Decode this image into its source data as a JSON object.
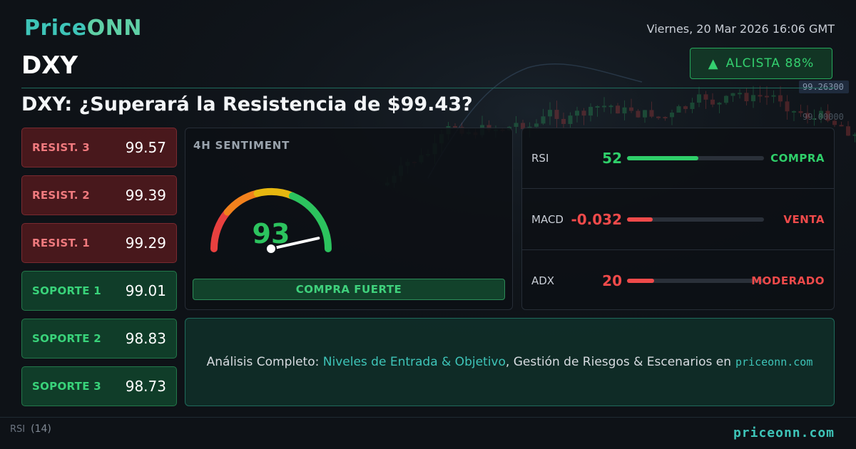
{
  "brand": {
    "logo_price": "Price",
    "logo_onn": "ONN"
  },
  "datetime": "Viernes, 20 Mar 2026 16:06 GMT",
  "symbol": "DXY",
  "trend": {
    "label": "ALCISTA 88%",
    "color": "#34d06f"
  },
  "headline": "DXY: ¿Superará la Resistencia de $99.43?",
  "background_chart": {
    "price_tags": [
      "99.26300",
      "99.00000"
    ],
    "bottom_label": "RSI",
    "bottom_param": "(14)"
  },
  "levels": [
    {
      "type": "res",
      "label": "RESIST. 3",
      "value": "99.57"
    },
    {
      "type": "res",
      "label": "RESIST. 2",
      "value": "99.39"
    },
    {
      "type": "res",
      "label": "RESIST. 1",
      "value": "99.29"
    },
    {
      "type": "sup",
      "label": "SOPORTE 1",
      "value": "99.01"
    },
    {
      "type": "sup",
      "label": "SOPORTE 2",
      "value": "98.83"
    },
    {
      "type": "sup",
      "label": "SOPORTE 3",
      "value": "98.73"
    }
  ],
  "sentiment": {
    "title": "4H SENTIMENT",
    "score": "93",
    "score_value": 93,
    "verdict": "COMPRA FUERTE",
    "colors": {
      "low": "#e8403f",
      "mid_low": "#f2811d",
      "mid": "#e6b710",
      "high": "#2cc35e"
    }
  },
  "indicators": [
    {
      "name": "RSI",
      "value": "52",
      "state": "COMPRA",
      "level": 0.52,
      "color": "#2fcf6a",
      "value_color": "#2fcf6a"
    },
    {
      "name": "MACD",
      "value": "-0.032",
      "state": "VENTA",
      "level": 0.19,
      "color": "#ef4a4a",
      "value_color": "#ef4a4a"
    },
    {
      "name": "ADX",
      "value": "20",
      "state": "MODERADO",
      "level": 0.2,
      "color": "#ef4a4a",
      "value_color": "#ef4a4a"
    }
  ],
  "cta": {
    "prefix": "Análisis Completo: ",
    "highlight": "Niveles de Entrada & Objetivo",
    "middle": ", Gestión de Riesgos & Escenarios en",
    "site": "priceonn.com"
  },
  "footer_url": "priceonn.com"
}
